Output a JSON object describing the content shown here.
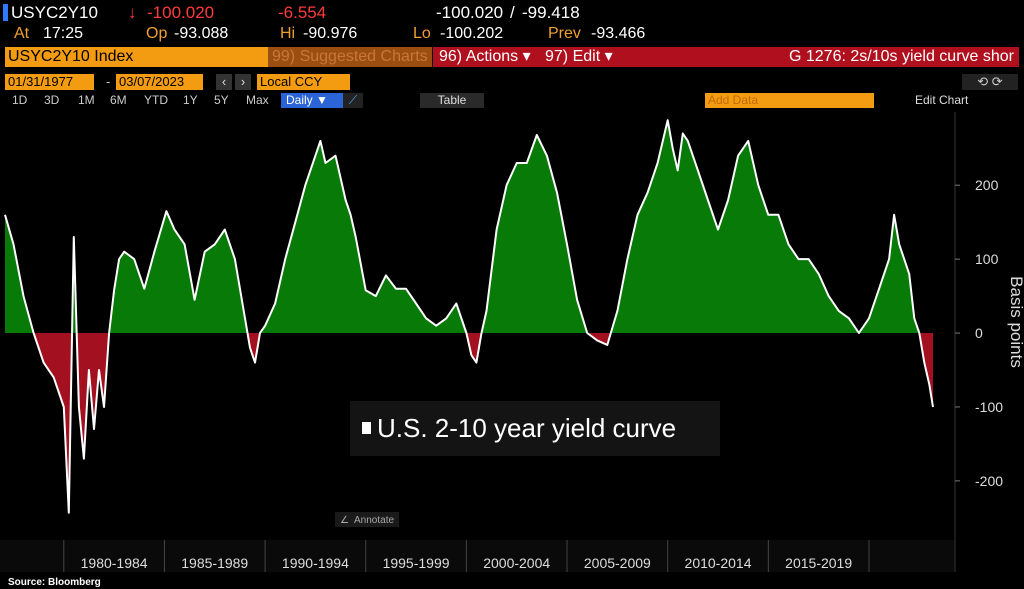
{
  "header": {
    "ticker": "USYC2Y10",
    "arrow": "↓",
    "last": "-100.020",
    "change": "-6.554",
    "bid": "-100.020",
    "separator": "/",
    "ask": "-99.418",
    "stats": [
      {
        "label": "At",
        "value": "17:25"
      },
      {
        "label": "Op",
        "value": "-93.088"
      },
      {
        "label": "Hi",
        "value": "-90.976"
      },
      {
        "label": "Lo",
        "value": "-100.202"
      },
      {
        "label": "Prev",
        "value": "-93.466"
      }
    ]
  },
  "menu": {
    "security": "USYC2Y10 Index",
    "suggested": "99) Suggested Charts",
    "actions": "96) Actions ▾",
    "edit": "97) Edit ▾",
    "chart_title": "G 1276: 2s/10s yield curve shor"
  },
  "controls": {
    "start_date": "01/31/1977",
    "dash": "-",
    "end_date": "03/07/2023",
    "currency": "Local CCY"
  },
  "toolbar": {
    "ranges": [
      "1D",
      "3D",
      "1M",
      "6M",
      "YTD",
      "1Y",
      "5Y",
      "Max"
    ],
    "frequency": "Daily ▼",
    "table": "Table",
    "add_data": "Add Data",
    "edit_chart": "Edit Chart",
    "annotate": "Annotate"
  },
  "chart_data": {
    "type": "area",
    "y_label": "Basis points",
    "positive_color": "#087a08",
    "negative_color": "#a3101f",
    "xlim": [
      1977.08,
      2023.18
    ],
    "ylim": [
      -280,
      295
    ],
    "xticks": [
      {
        "value": 1980,
        "label": "1980-1984"
      },
      {
        "value": 1985,
        "label": "1985-1989"
      },
      {
        "value": 1990,
        "label": "1990-1994"
      },
      {
        "value": 1995,
        "label": "1995-1999"
      },
      {
        "value": 2000,
        "label": "2000-2004"
      },
      {
        "value": 2005,
        "label": "2005-2009"
      },
      {
        "value": 2010,
        "label": "2010-2014"
      },
      {
        "value": 2015,
        "label": "2015-2019"
      }
    ],
    "yticks": [
      -200,
      -100,
      0,
      100,
      200
    ],
    "x": [
      1977.08,
      1977.5,
      1978,
      1978.5,
      1979,
      1979.5,
      1980,
      1980.25,
      1980.5,
      1980.75,
      1981,
      1981.25,
      1981.5,
      1981.75,
      1982,
      1982.25,
      1982.5,
      1982.75,
      1983,
      1983.5,
      1984,
      1984.5,
      1985.1,
      1985.5,
      1986,
      1986.5,
      1987,
      1987.5,
      1988,
      1988.5,
      1989,
      1989.25,
      1989.5,
      1989.75,
      1990,
      1990.5,
      1991,
      1991.5,
      1992,
      1992.5,
      1992.75,
      1993,
      1993.5,
      1994,
      1994.25,
      1994.5,
      1995,
      1995.5,
      1996,
      1996.5,
      1997,
      1997.5,
      1998,
      1998.5,
      1999,
      1999.5,
      2000,
      2000.25,
      2000.5,
      2000.75,
      2001,
      2001.5,
      2002,
      2002.5,
      2003,
      2003.5,
      2004,
      2004.5,
      2005,
      2005.5,
      2006,
      2006.5,
      2007,
      2007.5,
      2008,
      2008.5,
      2009,
      2009.5,
      2010,
      2010.25,
      2010.5,
      2010.75,
      2011,
      2011.5,
      2012,
      2012.5,
      2013,
      2013.5,
      2014,
      2014.5,
      2015,
      2015.5,
      2016,
      2016.5,
      2017,
      2017.5,
      2018,
      2018.5,
      2019,
      2019.5,
      2019.75,
      2020,
      2020.5,
      2021,
      2021.25,
      2021.5,
      2022,
      2022.25,
      2022.5,
      2022.75,
      2023,
      2023.18
    ],
    "series": [
      {
        "name": "U.S. 2-10 year yield curve",
        "color": "#ffffff",
        "values": [
          160,
          120,
          50,
          0,
          -40,
          -60,
          -100,
          -243,
          130,
          -100,
          -170,
          -50,
          -130,
          -50,
          -100,
          0,
          58,
          100,
          110,
          100,
          60,
          110,
          165,
          140,
          120,
          45,
          110,
          120,
          140,
          100,
          20,
          -20,
          -40,
          0,
          10,
          40,
          100,
          150,
          200,
          240,
          260,
          230,
          240,
          180,
          160,
          130,
          58,
          50,
          78,
          60,
          60,
          40,
          20,
          10,
          20,
          40,
          0,
          -30,
          -40,
          0,
          30,
          140,
          200,
          230,
          230,
          268,
          240,
          190,
          120,
          45,
          0,
          -10,
          -16,
          30,
          100,
          160,
          190,
          230,
          288,
          250,
          220,
          270,
          260,
          220,
          180,
          140,
          180,
          240,
          260,
          200,
          160,
          160,
          120,
          100,
          100,
          80,
          50,
          30,
          20,
          0,
          10,
          20,
          60,
          100,
          160,
          120,
          80,
          20,
          0,
          -40,
          -70,
          -100
        ]
      }
    ]
  },
  "source": "Source: Bloomberg"
}
